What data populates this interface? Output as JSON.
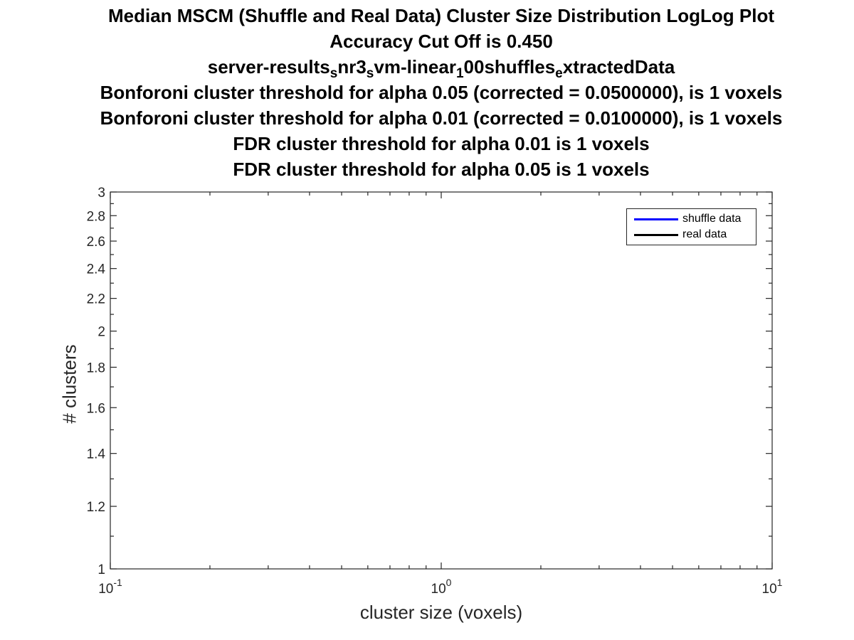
{
  "chart_data": {
    "type": "line",
    "title_lines": [
      {
        "parts": [
          {
            "text": "Median MSCM (Shuffle and Real Data) Cluster Size Distribution LogLog Plot"
          }
        ]
      },
      {
        "parts": [
          {
            "text": "Accuracy Cut Off is 0.450"
          }
        ]
      },
      {
        "parts": [
          {
            "text": "server-results"
          },
          {
            "text": "s",
            "sub": true
          },
          {
            "text": "nr3"
          },
          {
            "text": "s",
            "sub": true
          },
          {
            "text": "vm-linear"
          },
          {
            "text": "1",
            "sub": true
          },
          {
            "text": "00shuffles"
          },
          {
            "text": "e",
            "sub": true
          },
          {
            "text": "xtractedData"
          }
        ]
      },
      {
        "parts": [
          {
            "text": "Bonforoni cluster threshold for alpha 0.05 (corrected = 0.0500000), is 1 voxels"
          }
        ]
      },
      {
        "parts": [
          {
            "text": "Bonforoni cluster threshold for alpha 0.01 (corrected = 0.0100000), is 1 voxels"
          }
        ]
      },
      {
        "parts": [
          {
            "text": "FDR cluster threshold for alpha 0.01 is 1 voxels"
          }
        ]
      },
      {
        "parts": [
          {
            "text": "FDR cluster threshold for alpha 0.05 is 1 voxels"
          }
        ]
      }
    ],
    "xlabel": "cluster size (voxels)",
    "ylabel": "# clusters",
    "xscale": "log",
    "yscale": "log",
    "xlim": [
      0.1,
      10
    ],
    "ylim": [
      1,
      3
    ],
    "x_ticks": [
      {
        "value": 0.1,
        "base": "10",
        "exp": "-1"
      },
      {
        "value": 1,
        "base": "10",
        "exp": "0"
      },
      {
        "value": 10,
        "base": "10",
        "exp": "1"
      }
    ],
    "y_ticks": [
      {
        "value": 1,
        "label": "1"
      },
      {
        "value": 1.2,
        "label": "1.2"
      },
      {
        "value": 1.4,
        "label": "1.4"
      },
      {
        "value": 1.6,
        "label": "1.6"
      },
      {
        "value": 1.8,
        "label": "1.8"
      },
      {
        "value": 2,
        "label": "2"
      },
      {
        "value": 2.2,
        "label": "2.2"
      },
      {
        "value": 2.4,
        "label": "2.4"
      },
      {
        "value": 2.6,
        "label": "2.6"
      },
      {
        "value": 2.8,
        "label": "2.8"
      },
      {
        "value": 3,
        "label": "3"
      }
    ],
    "y_minor_ticks": [
      1.1,
      1.3,
      1.5,
      1.7,
      1.9,
      2.1,
      2.3,
      2.5,
      2.7,
      2.9
    ],
    "grid": false,
    "legend_position": "top-right",
    "series": [
      {
        "name": "shuffle data",
        "color": "#0000ff",
        "x": [],
        "y": []
      },
      {
        "name": "real data",
        "color": "#000000",
        "x": [],
        "y": []
      }
    ]
  }
}
